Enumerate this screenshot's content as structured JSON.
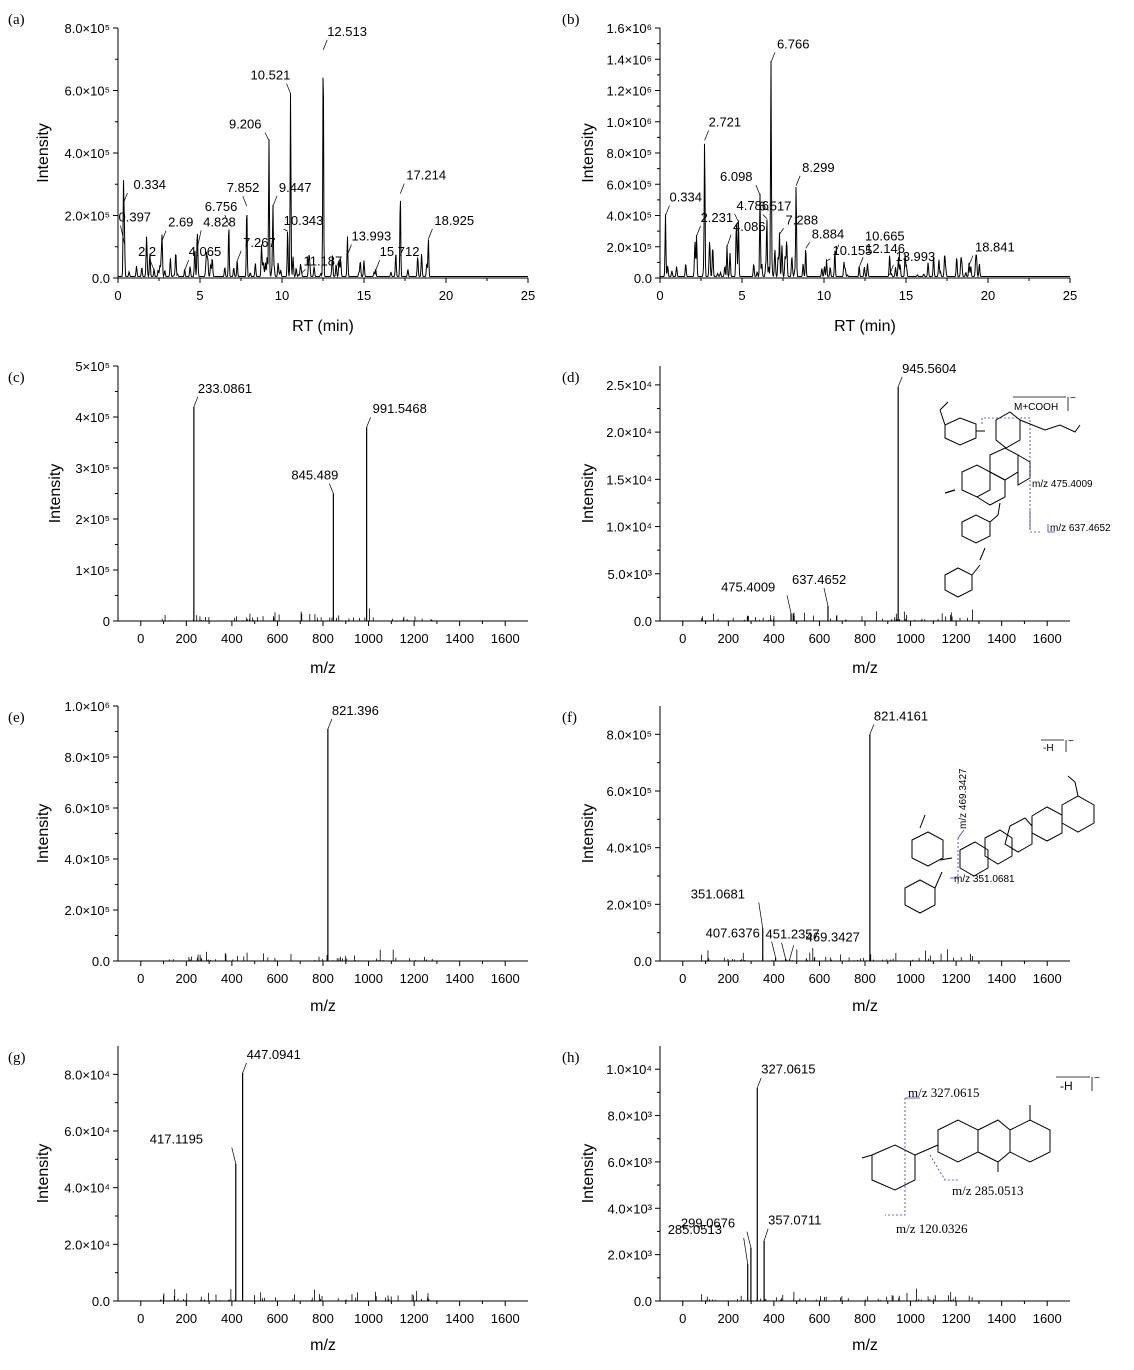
{
  "chart_data": [
    {
      "id": "a",
      "panel_label": "(a)",
      "type": "line",
      "xlabel": "RT (min)",
      "ylabel": "Intensity",
      "xlim": [
        0,
        25
      ],
      "ylim": [
        0,
        800000
      ],
      "xticks": [
        0,
        5,
        10,
        15,
        20,
        25
      ],
      "xtick_labels": [
        "0",
        "5",
        "10",
        "15",
        "20",
        "25"
      ],
      "yticks": [
        0,
        200000,
        400000,
        600000,
        800000
      ],
      "ytick_labels": [
        "0.0",
        "2.0×10⁵",
        "4.0×10⁵",
        "6.0×10⁵",
        "8.0×10⁵"
      ],
      "peaks": [
        {
          "x": 0.334,
          "y": 240000,
          "label": "0.334"
        },
        {
          "x": 0.397,
          "y": 110000,
          "label": "0.397"
        },
        {
          "x": 2.2,
          "y": 25000,
          "label": "2.2"
        },
        {
          "x": 2.69,
          "y": 120000,
          "label": "2.69"
        },
        {
          "x": 4.065,
          "y": 25000,
          "label": "4.065"
        },
        {
          "x": 4.828,
          "y": 95000,
          "label": "4.828"
        },
        {
          "x": 6.756,
          "y": 170000,
          "label": "6.756"
        },
        {
          "x": 7.267,
          "y": 55000,
          "label": "7.267"
        },
        {
          "x": 7.852,
          "y": 230000,
          "label": "7.852"
        },
        {
          "x": 9.206,
          "y": 440000,
          "label": "9.206"
        },
        {
          "x": 9.447,
          "y": 230000,
          "label": "9.447"
        },
        {
          "x": 10.343,
          "y": 150000,
          "label": "10.343"
        },
        {
          "x": 10.521,
          "y": 590000,
          "label": "10.521"
        },
        {
          "x": 11.187,
          "y": 15000,
          "label": "11.187"
        },
        {
          "x": 12.513,
          "y": 730000,
          "label": "12.513"
        },
        {
          "x": 13.993,
          "y": 75000,
          "label": "13.993"
        },
        {
          "x": 15.712,
          "y": 25000,
          "label": "15.712"
        },
        {
          "x": 17.214,
          "y": 270000,
          "label": "17.214"
        },
        {
          "x": 18.925,
          "y": 125000,
          "label": "18.925"
        }
      ]
    },
    {
      "id": "b",
      "panel_label": "(b)",
      "type": "line",
      "xlabel": "RT (min)",
      "ylabel": "Intensity",
      "xlim": [
        0,
        25
      ],
      "ylim": [
        0,
        1600000
      ],
      "xticks": [
        0,
        5,
        10,
        15,
        20,
        25
      ],
      "xtick_labels": [
        "0",
        "5",
        "10",
        "15",
        "20",
        "25"
      ],
      "yticks": [
        0,
        200000,
        400000,
        600000,
        800000,
        1000000,
        1200000,
        1400000,
        1600000
      ],
      "ytick_labels": [
        "0.0",
        "2.0×10⁵",
        "4.0×10⁵",
        "6.0×10⁵",
        "8.0×10⁵",
        "1.0×10⁶",
        "1.2×10⁶",
        "1.4×10⁶",
        "1.6×10⁶"
      ],
      "peaks": [
        {
          "x": 0.334,
          "y": 400000,
          "label": "0.334"
        },
        {
          "x": 2.231,
          "y": 270000,
          "label": "2.231"
        },
        {
          "x": 2.721,
          "y": 880000,
          "label": "2.721"
        },
        {
          "x": 4.086,
          "y": 200000,
          "label": "4.086"
        },
        {
          "x": 4.786,
          "y": 360000,
          "label": "4.786"
        },
        {
          "x": 6.098,
          "y": 530000,
          "label": "6.098"
        },
        {
          "x": 6.517,
          "y": 380000,
          "label": "6.517"
        },
        {
          "x": 6.766,
          "y": 1380000,
          "label": "6.766"
        },
        {
          "x": 7.288,
          "y": 280000,
          "label": "7.288"
        },
        {
          "x": 8.299,
          "y": 590000,
          "label": "8.299"
        },
        {
          "x": 8.884,
          "y": 190000,
          "label": "8.884"
        },
        {
          "x": 10.155,
          "y": 110000,
          "label": "10.155"
        },
        {
          "x": 10.665,
          "y": 150000,
          "label": "10.665"
        },
        {
          "x": 12.146,
          "y": 70000,
          "label": "12.146"
        },
        {
          "x": 13.993,
          "y": 20000,
          "label": "13.993"
        },
        {
          "x": 18.841,
          "y": 80000,
          "label": "18.841"
        }
      ]
    },
    {
      "id": "c",
      "panel_label": "(c)",
      "type": "bar",
      "xlabel": "m/z",
      "ylabel": "Intensity",
      "xlim": [
        -100,
        1700
      ],
      "ylim": [
        0,
        500000
      ],
      "xticks": [
        0,
        200,
        400,
        600,
        800,
        1000,
        1200,
        1400,
        1600
      ],
      "xtick_labels": [
        "0",
        "200",
        "400",
        "600",
        "800",
        "1000",
        "1200",
        "1400",
        "1600"
      ],
      "yticks": [
        0,
        100000,
        200000,
        300000,
        400000,
        500000
      ],
      "ytick_labels": [
        "0",
        "1×10⁵",
        "2×10⁵",
        "3×10⁵",
        "4×10⁵",
        "5×10⁵"
      ],
      "peaks": [
        {
          "x": 233.0861,
          "y": 420000,
          "label": "233.0861"
        },
        {
          "x": 845.489,
          "y": 250000,
          "label": "845.489"
        },
        {
          "x": 991.5468,
          "y": 380000,
          "label": "991.5468"
        }
      ]
    },
    {
      "id": "d",
      "panel_label": "(d)",
      "type": "bar",
      "xlabel": "m/z",
      "ylabel": "Intensity",
      "xlim": [
        -100,
        1700
      ],
      "ylim": [
        0,
        27000
      ],
      "xticks": [
        0,
        200,
        400,
        600,
        800,
        1000,
        1200,
        1400,
        1600
      ],
      "xtick_labels": [
        "0",
        "200",
        "400",
        "600",
        "800",
        "1000",
        "1200",
        "1400",
        "1600"
      ],
      "yticks": [
        0,
        5000,
        10000,
        15000,
        20000,
        25000
      ],
      "ytick_labels": [
        "0.0",
        "5.0×10³",
        "1.0×10⁴",
        "1.5×10⁴",
        "2.0×10⁴",
        "2.5×10⁴"
      ],
      "peaks": [
        {
          "x": 475.4009,
          "y": 800,
          "label": "475.4009"
        },
        {
          "x": 637.4652,
          "y": 1600,
          "label": "637.4652"
        },
        {
          "x": 945.5604,
          "y": 24800,
          "label": "945.5604"
        }
      ],
      "structure": {
        "adduct": "M+COOH",
        "fragments": [
          "m/z 475.4009",
          "m/z 637.4652"
        ]
      }
    },
    {
      "id": "e",
      "panel_label": "(e)",
      "type": "bar",
      "xlabel": "m/z",
      "ylabel": "Intensity",
      "xlim": [
        -100,
        1700
      ],
      "ylim": [
        0,
        1000000
      ],
      "xticks": [
        0,
        200,
        400,
        600,
        800,
        1000,
        1200,
        1400,
        1600
      ],
      "xtick_labels": [
        "0",
        "200",
        "400",
        "600",
        "800",
        "1000",
        "1200",
        "1400",
        "1600"
      ],
      "yticks": [
        0,
        200000,
        400000,
        600000,
        800000,
        1000000
      ],
      "ytick_labels": [
        "0.0",
        "2.0×10⁵",
        "4.0×10⁵",
        "6.0×10⁵",
        "8.0×10⁵",
        "1.0×10⁶"
      ],
      "peaks": [
        {
          "x": 821.396,
          "y": 910000,
          "label": "821.396"
        }
      ]
    },
    {
      "id": "f",
      "panel_label": "(f)",
      "type": "bar",
      "xlabel": "m/z",
      "ylabel": "Intensity",
      "xlim": [
        -100,
        1700
      ],
      "ylim": [
        0,
        900000
      ],
      "xticks": [
        0,
        200,
        400,
        600,
        800,
        1000,
        1200,
        1400,
        1600
      ],
      "xtick_labels": [
        "0",
        "200",
        "400",
        "600",
        "800",
        "1000",
        "1200",
        "1400",
        "1600"
      ],
      "yticks": [
        0,
        200000,
        400000,
        600000,
        800000
      ],
      "ytick_labels": [
        "0.0",
        "2.0×10⁵",
        "4.0×10⁵",
        "6.0×10⁵",
        "8.0×10⁵"
      ],
      "peaks": [
        {
          "x": 351.0681,
          "y": 115000,
          "label": "351.0681"
        },
        {
          "x": 407.6376,
          "y": 12000,
          "label": "407.6376"
        },
        {
          "x": 451.2357,
          "y": 8000,
          "label": "451.2357"
        },
        {
          "x": 469.3427,
          "y": 6000,
          "label": "469.3427"
        },
        {
          "x": 821.4161,
          "y": 800000,
          "label": "821.4161"
        }
      ],
      "structure": {
        "adduct": "-H",
        "fragments": [
          "m/z 469.3427",
          "m/z 351.0681"
        ]
      }
    },
    {
      "id": "g",
      "panel_label": "(g)",
      "type": "bar",
      "xlabel": "m/z",
      "ylabel": "Intensity",
      "xlim": [
        -100,
        1700
      ],
      "ylim": [
        0,
        90000
      ],
      "xticks": [
        0,
        200,
        400,
        600,
        800,
        1000,
        1200,
        1400,
        1600
      ],
      "xtick_labels": [
        "0",
        "200",
        "400",
        "600",
        "800",
        "1000",
        "1200",
        "1400",
        "1600"
      ],
      "yticks": [
        0,
        20000,
        40000,
        60000,
        80000
      ],
      "ytick_labels": [
        "0.0",
        "2.0×10⁴",
        "4.0×10⁴",
        "6.0×10⁴",
        "8.0×10⁴"
      ],
      "peaks": [
        {
          "x": 417.1195,
          "y": 48500,
          "label": "417.1195"
        },
        {
          "x": 447.0941,
          "y": 80500,
          "label": "447.0941"
        }
      ]
    },
    {
      "id": "h",
      "panel_label": "(h)",
      "type": "bar",
      "xlabel": "m/z",
      "ylabel": "Intensity",
      "xlim": [
        -100,
        1700
      ],
      "ylim": [
        0,
        11000
      ],
      "xticks": [
        0,
        200,
        400,
        600,
        800,
        1000,
        1200,
        1400,
        1600
      ],
      "xtick_labels": [
        "0",
        "200",
        "400",
        "600",
        "800",
        "1000",
        "1200",
        "1400",
        "1600"
      ],
      "yticks": [
        0,
        2000,
        4000,
        6000,
        8000,
        10000
      ],
      "ytick_labels": [
        "0.0",
        "2.0×10³",
        "4.0×10³",
        "6.0×10³",
        "8.0×10³",
        "1.0×10⁴"
      ],
      "peaks": [
        {
          "x": 285.0513,
          "y": 1600,
          "label": "285.0513"
        },
        {
          "x": 299.0676,
          "y": 2300,
          "label": "299.0676"
        },
        {
          "x": 327.0615,
          "y": 9200,
          "label": "327.0615"
        },
        {
          "x": 357.0711,
          "y": 2600,
          "label": "357.0711"
        }
      ],
      "structure": {
        "adduct": "-H",
        "fragments": [
          "m/z 327.0615",
          "m/z 285.0513",
          "m/z 120.0326"
        ]
      }
    }
  ]
}
